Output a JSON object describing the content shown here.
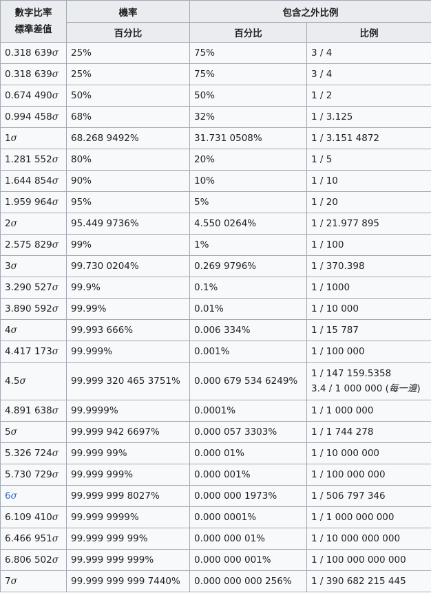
{
  "header": {
    "z_line1": "數字比率",
    "z_line2": "標準差值",
    "prob": "機率",
    "outside": "包含之外比例",
    "pct": "百分比",
    "pct2": "百分比",
    "ratio": "比例"
  },
  "symbols": {
    "sigma": "σ"
  },
  "accent_color": "#3366cc",
  "rows": [
    {
      "z": "0.318 639",
      "p": "25%",
      "o": "75%",
      "r": "3 / 4"
    },
    {
      "z": "0.318 639",
      "p": "25%",
      "o": "75%",
      "r": "3 / 4"
    },
    {
      "z": "0.674 490",
      "p": "50%",
      "o": "50%",
      "r": "1 / 2"
    },
    {
      "z": "0.994 458",
      "p": "68%",
      "o": "32%",
      "r": "1 / 3.125"
    },
    {
      "z": "1",
      "p": "68.268 9492%",
      "o": "31.731 0508%",
      "r": "1 / 3.151 4872"
    },
    {
      "z": "1.281 552",
      "p": "80%",
      "o": "20%",
      "r": "1 / 5"
    },
    {
      "z": "1.644 854",
      "p": "90%",
      "o": "10%",
      "r": "1 / 10"
    },
    {
      "z": "1.959 964",
      "p": "95%",
      "o": "5%",
      "r": "1 / 20"
    },
    {
      "z": "2",
      "p": "95.449 9736%",
      "o": "4.550 0264%",
      "r": "1 / 21.977 895"
    },
    {
      "z": "2.575 829",
      "p": "99%",
      "o": "1%",
      "r": "1 / 100"
    },
    {
      "z": "3",
      "p": "99.730 0204%",
      "o": "0.269 9796%",
      "r": "1 / 370.398"
    },
    {
      "z": "3.290 527",
      "p": "99.9%",
      "o": "0.1%",
      "r": "1 / 1000"
    },
    {
      "z": "3.890 592",
      "p": "99.99%",
      "o": "0.01%",
      "r": "1 / 10 000"
    },
    {
      "z": "4",
      "p": "99.993 666%",
      "o": "0.006 334%",
      "r": "1 / 15 787"
    },
    {
      "z": "4.417 173",
      "p": "99.999%",
      "o": "0.001%",
      "r": "1 / 100 000"
    },
    {
      "z": "4.5",
      "p": "99.999 320 465 3751%",
      "o": "0.000 679 534 6249%",
      "r": "1 / 147 159.5358",
      "r2": "3.4 / 1 000 000 (",
      "r2_note": "每一邊",
      "r2_end": ")"
    },
    {
      "z": "4.891 638",
      "p": "99.9999%",
      "o": "0.0001%",
      "r": "1 / 1 000 000"
    },
    {
      "z": "5",
      "p": "99.999 942 6697%",
      "o": "0.000 057 3303%",
      "r": "1 / 1 744 278"
    },
    {
      "z": "5.326 724",
      "p": "99.999 99%",
      "o": "0.000 01%",
      "r": "1 / 10 000 000"
    },
    {
      "z": "5.730 729",
      "p": "99.999 999%",
      "o": "0.000 001%",
      "r": "1 / 100 000 000"
    },
    {
      "z": "6",
      "p": "99.999 999 8027%",
      "o": "0.000 000 1973%",
      "r": "1 / 506 797 346"
    },
    {
      "z": "6.109 410",
      "p": "99.999 9999%",
      "o": "0.000 0001%",
      "r": "1 / 1 000 000 000"
    },
    {
      "z": "6.466 951",
      "p": "99.999 999 99%",
      "o": "0.000 000 01%",
      "r": "1 / 10 000 000 000"
    },
    {
      "z": "6.806 502",
      "p": "99.999 999 999%",
      "o": "0.000 000 001%",
      "r": "1 / 100 000 000 000"
    },
    {
      "z": "7",
      "p": "99.999 999 999 7440%",
      "o": "0.000 000 000 256%",
      "r": "1 / 390 682 215 445"
    }
  ]
}
